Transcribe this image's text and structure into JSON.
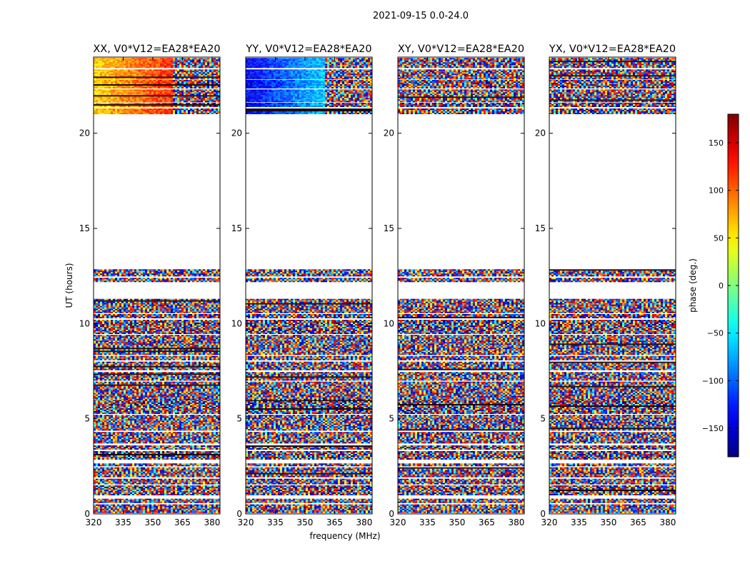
{
  "chart_data": {
    "type": "heatmap",
    "suptitle": "2021-09-15 0.0-24.0",
    "xlabel": "frequency (MHz)",
    "ylabel": "UT (hours)",
    "xlim": [
      320,
      384
    ],
    "ylim": [
      0,
      24
    ],
    "xticks": [
      320,
      335,
      350,
      365,
      380
    ],
    "xtick_labels": [
      "320",
      "335",
      "350",
      "365",
      "380"
    ],
    "yticks": [
      0,
      5,
      10,
      15,
      20
    ],
    "ytick_labels": [
      "0",
      "5",
      "10",
      "15",
      "20"
    ],
    "colorbar": {
      "label": "phase (deg.)",
      "range": [
        -180,
        180
      ],
      "colormap": "jet",
      "ticks": [
        150,
        100,
        50,
        0,
        -50,
        -100,
        -150
      ],
      "tick_labels": [
        "150",
        "100",
        "50",
        "0",
        "−50",
        "−100",
        "−150"
      ]
    },
    "panels": [
      {
        "pol": "XX",
        "title": "XX, V0*V12=EA28*EA20",
        "base_phase": 60,
        "slope": 1.6,
        "coherent_hours": [
          21.0,
          24.0
        ]
      },
      {
        "pol": "YY",
        "title": "YY, V0*V12=EA28*EA20",
        "base_phase": -140,
        "slope": 1.9,
        "coherent_hours": [
          21.0,
          24.0
        ]
      },
      {
        "pol": "XY",
        "title": "XY, V0*V12=EA28*EA20",
        "base_phase": null,
        "slope": 0,
        "coherent_hours": []
      },
      {
        "pol": "YX",
        "title": "YX, V0*V12=EA28*EA20",
        "base_phase": null,
        "slope": 0,
        "coherent_hours": []
      }
    ],
    "data_intervals_hours": [
      [
        0.1,
        0.5
      ],
      [
        0.6,
        0.8
      ],
      [
        1.0,
        1.5
      ],
      [
        1.6,
        1.85
      ],
      [
        1.95,
        2.45
      ],
      [
        2.55,
        2.65
      ],
      [
        2.85,
        3.3
      ],
      [
        3.4,
        3.6
      ],
      [
        3.7,
        4.3
      ],
      [
        4.4,
        5.2
      ],
      [
        5.3,
        6.0
      ],
      [
        6.05,
        6.95
      ],
      [
        7.05,
        7.45
      ],
      [
        7.55,
        8.0
      ],
      [
        8.1,
        8.3
      ],
      [
        8.4,
        9.4
      ],
      [
        9.5,
        10.2
      ],
      [
        10.3,
        10.5
      ],
      [
        10.6,
        11.3
      ],
      [
        12.2,
        12.4
      ],
      [
        12.5,
        12.85
      ],
      [
        21.0,
        21.3
      ],
      [
        21.4,
        21.6
      ],
      [
        21.7,
        22.3
      ],
      [
        22.4,
        22.8
      ],
      [
        22.9,
        23.35
      ],
      [
        23.45,
        23.95
      ]
    ]
  }
}
